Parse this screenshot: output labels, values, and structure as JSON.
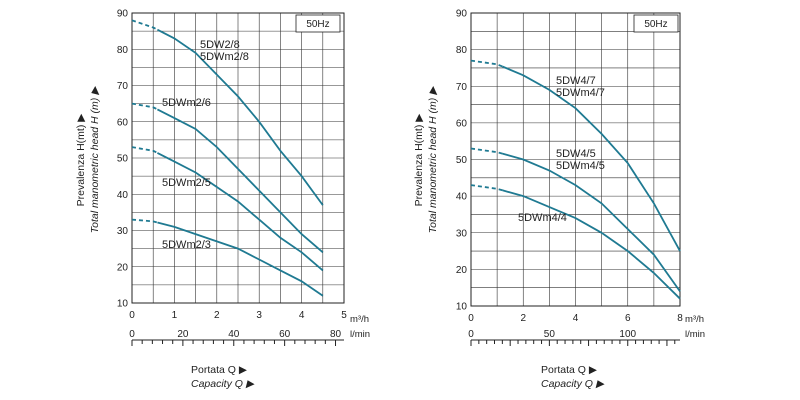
{
  "chart_data": [
    {
      "type": "line",
      "frequency_badge": "50Hz",
      "ylabel_it": "Prevalenza H(mt)",
      "ylabel_en": "Total manometric head H (m)",
      "xlabel_it": "Portata Q",
      "xlabel_en": "Capacity Q",
      "xunit_primary": "m³/h",
      "xunit_secondary": "l/min",
      "xlim": [
        0,
        5
      ],
      "ylim": [
        10,
        90
      ],
      "yticks": [
        "10",
        "20",
        "30",
        "40",
        "50",
        "60",
        "70",
        "80",
        "90"
      ],
      "xticks_primary": [
        "0",
        "1",
        "2",
        "3",
        "4",
        "5"
      ],
      "xticks_secondary": [
        "0",
        "20",
        "40",
        "60",
        "80"
      ],
      "xticks_secondary_values": [
        0,
        20,
        40,
        60,
        80
      ],
      "secondary_per_primary": 16.667,
      "dashed_until_x": 0.6,
      "series": [
        {
          "name": "5DW2/8",
          "name2": "5DWm2/8",
          "x": [
            0,
            0.5,
            1,
            1.5,
            2,
            2.5,
            3,
            3.5,
            4,
            4.5
          ],
          "y": [
            88,
            86,
            83,
            79,
            73,
            67,
            60,
            52,
            45,
            37
          ]
        },
        {
          "name": "5DWm2/6",
          "x": [
            0,
            0.5,
            1,
            1.5,
            2,
            2.5,
            3,
            3.5,
            4,
            4.5
          ],
          "y": [
            65,
            64,
            61,
            58,
            53,
            47,
            41,
            35,
            29,
            24
          ]
        },
        {
          "name": "5DWm2/5",
          "x": [
            0,
            0.5,
            1,
            1.5,
            2,
            2.5,
            3,
            3.5,
            4,
            4.5
          ],
          "y": [
            53,
            52,
            49,
            46,
            42,
            38,
            33,
            28,
            24,
            19
          ]
        },
        {
          "name": "5DWm2/3",
          "x": [
            0,
            0.5,
            1,
            1.5,
            2,
            2.5,
            3,
            3.5,
            4,
            4.5
          ],
          "y": [
            33,
            32.5,
            31,
            29,
            27,
            25,
            22,
            19,
            16,
            12
          ]
        }
      ]
    },
    {
      "type": "line",
      "frequency_badge": "50Hz",
      "ylabel_it": "Prevalenza H(mt)",
      "ylabel_en": "Total manometric head H (m)",
      "xlabel_it": "Portata Q",
      "xlabel_en": "Capacity Q",
      "xunit_primary": "m³/h",
      "xunit_secondary": "l/min",
      "xlim": [
        0,
        8
      ],
      "ylim": [
        10,
        90
      ],
      "yticks": [
        "10",
        "20",
        "30",
        "40",
        "50",
        "60",
        "70",
        "80",
        "90"
      ],
      "xticks_primary": [
        "0",
        "2",
        "4",
        "6",
        "8"
      ],
      "xticks_secondary": [
        "0",
        "50",
        "100"
      ],
      "xticks_secondary_values": [
        0,
        50,
        100
      ],
      "secondary_per_primary": 16.667,
      "dashed_until_x": 1.2,
      "series": [
        {
          "name": "5DW4/7",
          "name2": "5DWm4/7",
          "x": [
            0,
            1,
            2,
            3,
            4,
            5,
            6,
            7,
            8
          ],
          "y": [
            77,
            76,
            73,
            69,
            64,
            57,
            49,
            38,
            25
          ]
        },
        {
          "name": "5DW4/5",
          "name2": "5DWm4/5",
          "x": [
            0,
            1,
            2,
            3,
            4,
            5,
            6,
            7,
            8
          ],
          "y": [
            53,
            52,
            50,
            47,
            43,
            38,
            31,
            24,
            14
          ]
        },
        {
          "name": "5DWm4/4",
          "x": [
            0,
            1,
            2,
            3,
            4,
            5,
            6,
            7,
            8
          ],
          "y": [
            43,
            42,
            40,
            37,
            34,
            30,
            25,
            19,
            12
          ]
        }
      ]
    }
  ]
}
